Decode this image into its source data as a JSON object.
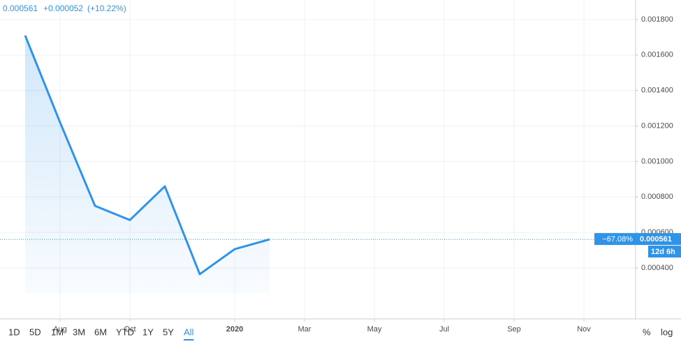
{
  "chart_data": {
    "type": "line",
    "legend": {
      "price": "0.000561",
      "change": "+0.000052",
      "change_pct": "(+10.22%)"
    },
    "x": [
      "2019-07",
      "2019-08",
      "2019-09",
      "2019-10",
      "2019-11",
      "2019-12",
      "2020-01",
      "2020-02"
    ],
    "series": [
      {
        "color": "#2f94e8",
        "values": [
          0.00171,
          0.00122,
          0.00075,
          0.00067,
          0.00086,
          0.000365,
          0.000506,
          0.000561
        ]
      }
    ],
    "xlim": [
      "2019-06",
      "2020-12"
    ],
    "xticks": [
      {
        "value": "2019-08",
        "label": "Aug"
      },
      {
        "value": "2019-10",
        "label": "Oct"
      },
      {
        "value": "2020-01",
        "label": "2020"
      },
      {
        "value": "2020-03",
        "label": "Mar"
      },
      {
        "value": "2020-05",
        "label": "May"
      },
      {
        "value": "2020-07",
        "label": "Jul"
      },
      {
        "value": "2020-09",
        "label": "Sep"
      },
      {
        "value": "2020-11",
        "label": "Nov"
      }
    ],
    "ylim": [
      0.000113,
      0.00191
    ],
    "yticks": [
      {
        "value": 0.0004,
        "label": "0.000400"
      },
      {
        "value": 0.0006,
        "label": "0.000600"
      },
      {
        "value": 0.0008,
        "label": "0.000800"
      },
      {
        "value": 0.001,
        "label": "0.001000"
      },
      {
        "value": 0.0012,
        "label": "0.001200"
      },
      {
        "value": 0.0014,
        "label": "0.001400"
      },
      {
        "value": 0.0016,
        "label": "0.001600"
      },
      {
        "value": 0.0018,
        "label": "0.001800"
      }
    ],
    "grid": true,
    "price_tag": {
      "price": "0.000561",
      "change": "−67.08%",
      "countdown": "12d 6h"
    },
    "ranges": [
      "1D",
      "5D",
      "1M",
      "3M",
      "6M",
      "YTD",
      "1Y",
      "5Y",
      "All"
    ],
    "active_range": 8,
    "scale_options": [
      "%",
      "log"
    ]
  }
}
